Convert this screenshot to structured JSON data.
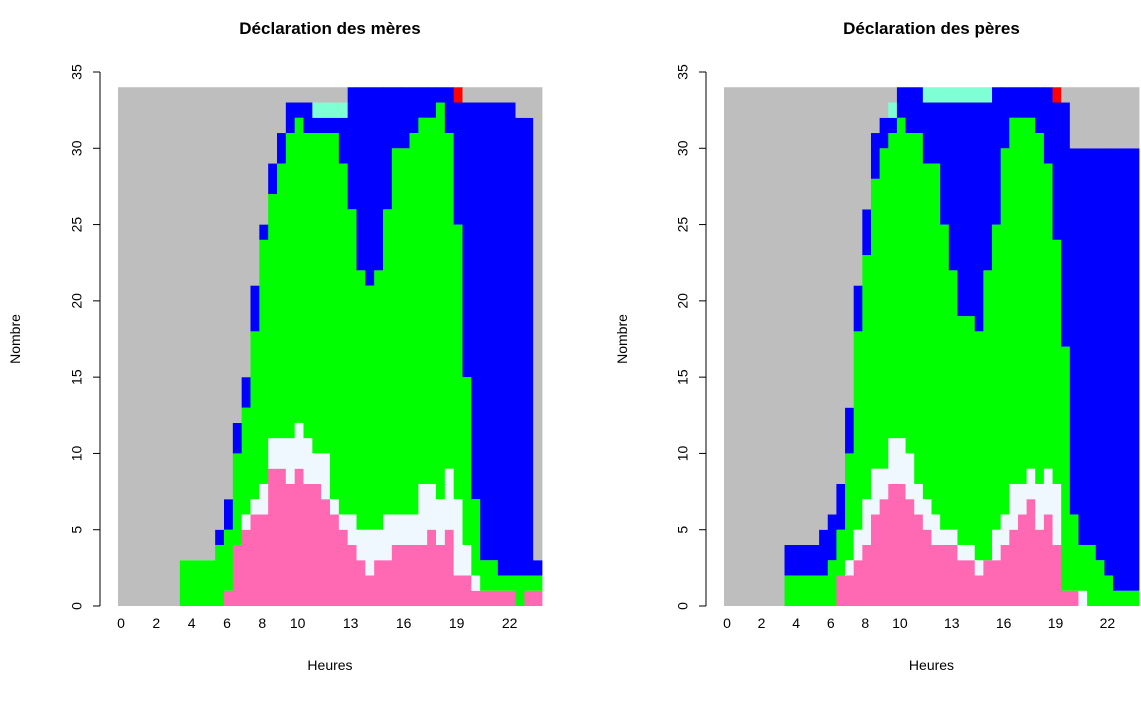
{
  "chart_data": [
    {
      "type": "stacked-bar",
      "title": "Déclaration des mères",
      "xlabel": "Heures",
      "ylabel": "Nombre",
      "x": [
        0,
        0.5,
        1,
        1.5,
        2,
        2.5,
        3,
        3.5,
        4,
        4.5,
        5,
        5.5,
        6,
        6.5,
        7,
        7.5,
        8,
        8.5,
        9,
        9.5,
        10,
        10.5,
        11,
        11.5,
        12,
        12.5,
        13,
        13.5,
        14,
        14.5,
        15,
        15.5,
        16,
        16.5,
        17,
        17.5,
        18,
        18.5,
        19,
        19.5,
        20,
        20.5,
        21,
        21.5,
        22,
        22.5,
        23,
        23.5
      ],
      "xlim": [
        0,
        24
      ],
      "xticks": [
        0,
        2,
        4,
        6,
        8,
        10,
        13,
        16,
        19,
        22
      ],
      "ylim": [
        0,
        35
      ],
      "yticks": [
        0,
        5,
        10,
        15,
        20,
        25,
        30,
        35
      ],
      "series": [
        {
          "color": "#ff69b4",
          "values": [
            0,
            0,
            0,
            0,
            0,
            0,
            0,
            0,
            0,
            0,
            0,
            0,
            1,
            4,
            5,
            6,
            6,
            9,
            9,
            8,
            9,
            8,
            8,
            7,
            6,
            5,
            4,
            3,
            2,
            3,
            3,
            4,
            4,
            4,
            4,
            5,
            4,
            5,
            2,
            2,
            1,
            1,
            1,
            1,
            1,
            0,
            1,
            1
          ]
        },
        {
          "color": "#f0f8ff",
          "values": [
            0,
            0,
            0,
            0,
            0,
            0,
            0,
            0,
            0,
            0,
            0,
            0,
            0,
            0,
            1,
            1,
            2,
            2,
            2,
            3,
            3,
            3,
            2,
            3,
            1,
            1,
            2,
            2,
            3,
            2,
            3,
            2,
            2,
            2,
            4,
            3,
            3,
            4,
            5,
            2,
            1,
            0,
            0,
            0,
            0,
            0,
            0,
            0
          ]
        },
        {
          "color": "#00ff00",
          "values": [
            0,
            0,
            0,
            0,
            0,
            0,
            0,
            3,
            3,
            3,
            3,
            4,
            4,
            6,
            7,
            11,
            16,
            16,
            18,
            20,
            20,
            20,
            21,
            21,
            24,
            23,
            20,
            17,
            16,
            17,
            20,
            24,
            24,
            25,
            24,
            24,
            26,
            22,
            18,
            11,
            5,
            2,
            2,
            1,
            1,
            2,
            1,
            1
          ]
        },
        {
          "color": "#0000ff",
          "values": [
            0,
            0,
            0,
            0,
            0,
            0,
            0,
            0,
            0,
            0,
            0,
            1,
            2,
            2,
            2,
            3,
            1,
            2,
            2,
            2,
            1,
            2,
            1,
            1,
            1,
            3,
            8,
            12,
            13,
            12,
            8,
            4,
            4,
            3,
            2,
            2,
            1,
            3,
            8,
            18,
            26,
            30,
            30,
            31,
            31,
            30,
            30,
            1
          ]
        },
        {
          "color": "#7fffd4",
          "values": [
            0,
            0,
            0,
            0,
            0,
            0,
            0,
            0,
            0,
            0,
            0,
            0,
            0,
            0,
            0,
            0,
            0,
            0,
            0,
            0,
            0,
            0,
            1,
            1,
            1,
            1,
            0,
            0,
            0,
            0,
            0,
            0,
            0,
            0,
            0,
            0,
            0,
            0,
            0,
            0,
            0,
            0,
            0,
            0,
            0,
            0,
            0,
            0
          ]
        },
        {
          "color": "#ff0000",
          "values": [
            0,
            0,
            0,
            0,
            0,
            0,
            0,
            0,
            0,
            0,
            0,
            0,
            0,
            0,
            0,
            0,
            0,
            0,
            0,
            0,
            0,
            0,
            0,
            0,
            0,
            0,
            0,
            0,
            0,
            0,
            0,
            0,
            0,
            0,
            0,
            0,
            0,
            0,
            1,
            0,
            0,
            0,
            0,
            0,
            0,
            0,
            0,
            0
          ]
        },
        {
          "color": "#bebebe",
          "values": [
            34,
            34,
            34,
            34,
            34,
            34,
            34,
            31,
            31,
            31,
            31,
            29,
            27,
            22,
            19,
            13,
            9,
            5,
            3,
            1,
            1,
            1,
            1,
            1,
            1,
            1,
            0,
            0,
            0,
            0,
            0,
            0,
            0,
            0,
            0,
            0,
            0,
            0,
            0,
            1,
            1,
            1,
            1,
            1,
            1,
            2,
            2,
            31
          ]
        }
      ]
    },
    {
      "type": "stacked-bar",
      "title": "Déclaration des pères",
      "xlabel": "Heures",
      "ylabel": "Nombre",
      "x": [
        0,
        0.5,
        1,
        1.5,
        2,
        2.5,
        3,
        3.5,
        4,
        4.5,
        5,
        5.5,
        6,
        6.5,
        7,
        7.5,
        8,
        8.5,
        9,
        9.5,
        10,
        10.5,
        11,
        11.5,
        12,
        12.5,
        13,
        13.5,
        14,
        14.5,
        15,
        15.5,
        16,
        16.5,
        17,
        17.5,
        18,
        18.5,
        19,
        19.5,
        20,
        20.5,
        21,
        21.5,
        22,
        22.5,
        23,
        23.5
      ],
      "xlim": [
        0,
        24
      ],
      "xticks": [
        0,
        2,
        4,
        6,
        8,
        10,
        13,
        16,
        19,
        22
      ],
      "ylim": [
        0,
        35
      ],
      "yticks": [
        0,
        5,
        10,
        15,
        20,
        25,
        30,
        35
      ],
      "series": [
        {
          "color": "#ff69b4",
          "values": [
            0,
            0,
            0,
            0,
            0,
            0,
            0,
            0,
            0,
            0,
            0,
            0,
            0,
            2,
            2,
            3,
            4,
            6,
            7,
            8,
            8,
            7,
            6,
            5,
            4,
            4,
            4,
            3,
            3,
            2,
            3,
            3,
            4,
            5,
            6,
            7,
            5,
            6,
            4,
            1,
            1,
            0,
            0,
            0,
            0,
            0,
            0,
            0
          ]
        },
        {
          "color": "#f0f8ff",
          "values": [
            0,
            0,
            0,
            0,
            0,
            0,
            0,
            0,
            0,
            0,
            0,
            0,
            0,
            0,
            1,
            2,
            3,
            3,
            2,
            3,
            3,
            3,
            2,
            2,
            2,
            1,
            1,
            1,
            1,
            1,
            0,
            2,
            2,
            3,
            2,
            2,
            3,
            3,
            4,
            0,
            0,
            1,
            0,
            0,
            0,
            0,
            0,
            0
          ]
        },
        {
          "color": "#00ff00",
          "values": [
            0,
            0,
            0,
            0,
            0,
            0,
            0,
            2,
            2,
            2,
            2,
            2,
            3,
            3,
            7,
            13,
            16,
            19,
            21,
            20,
            21,
            21,
            23,
            22,
            23,
            20,
            17,
            15,
            15,
            15,
            19,
            20,
            24,
            24,
            24,
            23,
            23,
            20,
            16,
            16,
            5,
            3,
            4,
            3,
            2,
            1,
            1,
            1
          ]
        },
        {
          "color": "#0000ff",
          "values": [
            0,
            0,
            0,
            0,
            0,
            0,
            0,
            2,
            2,
            2,
            2,
            3,
            3,
            3,
            3,
            3,
            3,
            3,
            2,
            1,
            2,
            3,
            3,
            4,
            4,
            8,
            11,
            14,
            14,
            15,
            11,
            9,
            4,
            2,
            2,
            2,
            3,
            5,
            9,
            16,
            24,
            26,
            26,
            27,
            28,
            29,
            29,
            29
          ]
        },
        {
          "color": "#7fffd4",
          "values": [
            0,
            0,
            0,
            0,
            0,
            0,
            0,
            0,
            0,
            0,
            0,
            0,
            0,
            0,
            0,
            0,
            0,
            0,
            0,
            1,
            0,
            0,
            0,
            1,
            1,
            1,
            1,
            1,
            1,
            1,
            1,
            0,
            0,
            0,
            0,
            0,
            0,
            0,
            0,
            0,
            0,
            0,
            0,
            0,
            0,
            0,
            0,
            0
          ]
        },
        {
          "color": "#ff0000",
          "values": [
            0,
            0,
            0,
            0,
            0,
            0,
            0,
            0,
            0,
            0,
            0,
            0,
            0,
            0,
            0,
            0,
            0,
            0,
            0,
            0,
            0,
            0,
            0,
            0,
            0,
            0,
            0,
            0,
            0,
            0,
            0,
            0,
            0,
            0,
            0,
            0,
            0,
            0,
            1,
            0,
            0,
            0,
            0,
            0,
            0,
            0,
            0,
            0
          ]
        },
        {
          "color": "#bebebe",
          "values": [
            34,
            34,
            34,
            34,
            34,
            34,
            34,
            30,
            30,
            30,
            30,
            29,
            28,
            26,
            21,
            13,
            8,
            3,
            2,
            1,
            0,
            0,
            0,
            0,
            0,
            0,
            0,
            0,
            0,
            0,
            0,
            0,
            0,
            0,
            0,
            0,
            0,
            0,
            0,
            1,
            4,
            4,
            4,
            4,
            4,
            4,
            4,
            4
          ]
        }
      ]
    }
  ]
}
